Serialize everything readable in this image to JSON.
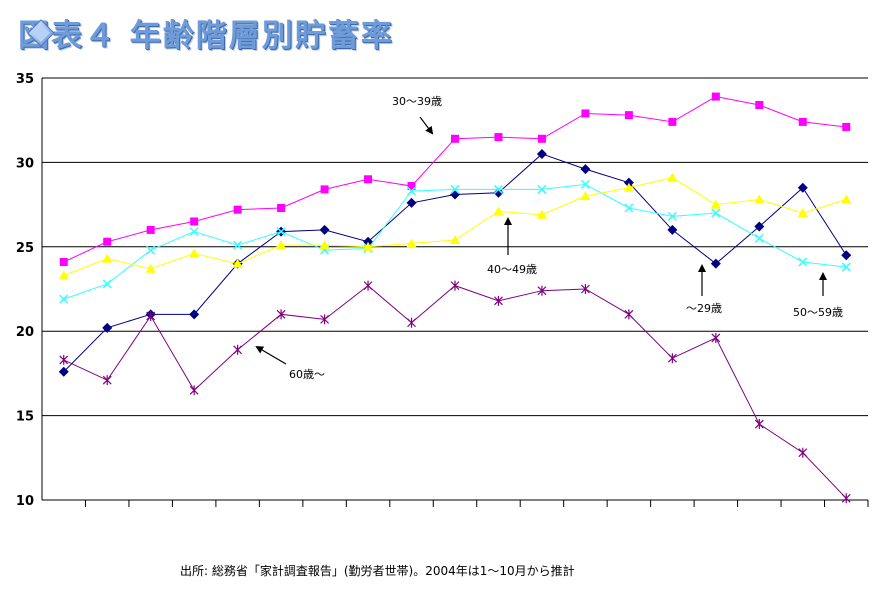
{
  "title": "図表４ 年齢階層別貯蓄率",
  "source_note": "出所: 総務省「家計調査報告」(勤労者世帯)。2004年は1～10月から推計",
  "chart_data": {
    "type": "line",
    "title": "図表４ 年齢階層別貯蓄率",
    "xlabel": "",
    "ylabel": "",
    "ylim": [
      10,
      35
    ],
    "yticks": [
      10,
      15,
      20,
      25,
      30,
      35
    ],
    "x": [
      1,
      2,
      3,
      4,
      5,
      6,
      7,
      8,
      9,
      10,
      11,
      12,
      13,
      14,
      15,
      16,
      17,
      18,
      19
    ],
    "grid": "horizontal",
    "legend": "none",
    "series": [
      {
        "name": "30～39歳",
        "color": "#ff00ff",
        "marker": "square",
        "values": [
          24.1,
          25.3,
          26.0,
          26.5,
          27.2,
          27.3,
          28.4,
          29.0,
          28.6,
          31.4,
          31.5,
          31.4,
          32.9,
          32.8,
          32.4,
          33.9,
          33.4,
          32.4,
          32.1
        ]
      },
      {
        "name": "～29歳",
        "color": "#000080",
        "marker": "diamond",
        "values": [
          17.6,
          20.2,
          21.0,
          21.0,
          24.0,
          25.9,
          26.0,
          25.3,
          27.6,
          28.1,
          28.2,
          30.5,
          29.6,
          28.8,
          26.0,
          24.0,
          26.2,
          28.5,
          24.5
        ]
      },
      {
        "name": "50～59歳",
        "color": "#33ffff",
        "marker": "x",
        "values": [
          21.9,
          22.8,
          24.8,
          25.9,
          25.1,
          25.9,
          24.8,
          24.9,
          28.3,
          28.4,
          28.4,
          28.4,
          28.7,
          27.3,
          26.8,
          27.0,
          25.5,
          24.1,
          23.8
        ]
      },
      {
        "name": "40～49歳",
        "color": "#ffff00",
        "marker": "triangle",
        "values": [
          23.3,
          24.3,
          23.7,
          24.6,
          24.0,
          25.1,
          25.1,
          25.0,
          25.2,
          25.4,
          27.1,
          26.9,
          28.0,
          28.5,
          29.1,
          27.5,
          27.8,
          27.0,
          27.8
        ]
      },
      {
        "name": "60歳～",
        "color": "#800080",
        "marker": "star",
        "values": [
          18.3,
          17.1,
          20.9,
          16.5,
          18.9,
          21.0,
          20.7,
          22.7,
          20.5,
          22.7,
          21.8,
          22.4,
          22.5,
          21.0,
          18.4,
          19.6,
          14.5,
          12.8,
          10.1
        ]
      }
    ],
    "annotations": [
      {
        "text": "30～39歳",
        "arrow": "down-right"
      },
      {
        "text": "40～49歳",
        "arrow": "up"
      },
      {
        "text": "～29歳",
        "arrow": "up"
      },
      {
        "text": "50～59歳",
        "arrow": "up"
      },
      {
        "text": "60歳～",
        "arrow": "up-left"
      }
    ]
  }
}
